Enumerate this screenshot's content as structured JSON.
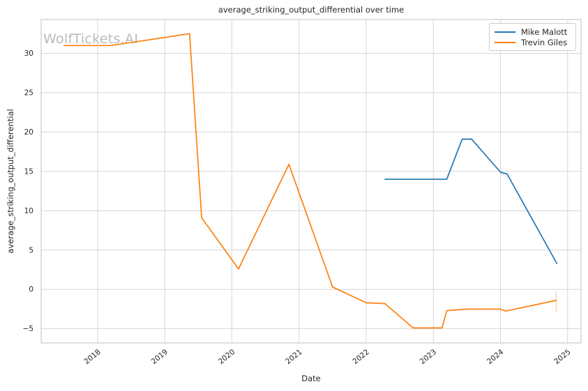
{
  "figure": {
    "title": "average_striking_output_differential over time",
    "xlabel": "Date",
    "ylabel": "average_striking_output_differential",
    "watermark": "WolfTickets.AI"
  },
  "legend": {
    "position": "upper right",
    "items": [
      {
        "label": "Mike Malott",
        "color": "#1f77b4"
      },
      {
        "label": "Trevin Giles",
        "color": "#ff7f0e"
      }
    ]
  },
  "chart_data": {
    "type": "line",
    "title": "average_striking_output_differential over time",
    "xlabel": "Date",
    "ylabel": "average_striking_output_differential",
    "xlim": [
      2017.16,
      2025.2
    ],
    "ylim": [
      -6.8,
      34.3
    ],
    "xticks": [
      2018,
      2019,
      2020,
      2021,
      2022,
      2023,
      2024,
      2025
    ],
    "yticks": [
      -5,
      0,
      5,
      10,
      15,
      20,
      25,
      30
    ],
    "grid": true,
    "legend_position": "upper right",
    "series": [
      {
        "name": "Mike Malott",
        "color": "#1f77b4",
        "points": [
          [
            2022.28,
            14.0
          ],
          [
            2023.2,
            14.0
          ],
          [
            2023.43,
            19.1
          ],
          [
            2023.57,
            19.1
          ],
          [
            2024.0,
            14.9
          ],
          [
            2024.1,
            14.65
          ],
          [
            2024.84,
            3.3
          ]
        ]
      },
      {
        "name": "Trevin Giles",
        "color": "#ff7f0e",
        "points": [
          [
            2017.5,
            31.0
          ],
          [
            2018.2,
            31.0
          ],
          [
            2019.37,
            32.5
          ],
          [
            2019.55,
            9.1
          ],
          [
            2020.1,
            2.6
          ],
          [
            2020.85,
            15.9
          ],
          [
            2021.5,
            0.3
          ],
          [
            2022.0,
            -1.7
          ],
          [
            2022.28,
            -1.8
          ],
          [
            2022.7,
            -4.9
          ],
          [
            2023.13,
            -4.9
          ],
          [
            2023.2,
            -2.7
          ],
          [
            2023.5,
            -2.5
          ],
          [
            2024.0,
            -2.5
          ],
          [
            2024.08,
            -2.75
          ],
          [
            2024.83,
            -1.4
          ]
        ]
      }
    ],
    "error_bar": {
      "series": "Trevin Giles",
      "x": 2024.83,
      "y_top": -0.3,
      "y_bottom": -2.8,
      "color": "rgba(255,127,14,0.35)"
    }
  },
  "colors": {
    "background": "#ffffff",
    "grid": "#d6d6d6",
    "spine": "#cccccc",
    "tick_label": "#262626",
    "title": "#262626",
    "watermark": "#a9a9a9"
  }
}
